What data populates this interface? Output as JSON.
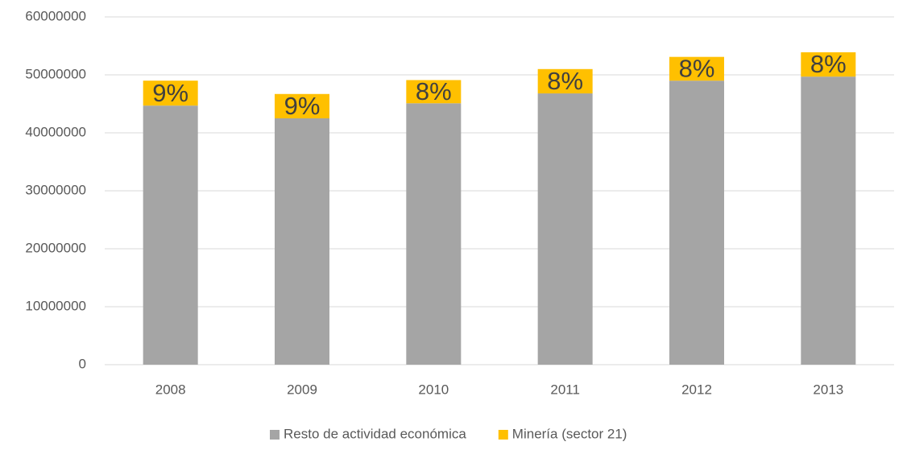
{
  "chart_data": {
    "type": "stacked_bar",
    "categories": [
      "2008",
      "2009",
      "2010",
      "2011",
      "2012",
      "2013"
    ],
    "series": [
      {
        "name": "Resto de actividad económica",
        "color": "#a5a5a5",
        "values": [
          44700000,
          42500000,
          45100000,
          46800000,
          49000000,
          49700000
        ]
      },
      {
        "name": "Minería (sector 21)",
        "color": "#ffc000",
        "values": [
          4300000,
          4200000,
          4000000,
          4200000,
          4100000,
          4200000
        ],
        "percent_labels": [
          "9%",
          "9%",
          "8%",
          "8%",
          "8%",
          "8%"
        ]
      }
    ],
    "ylim": [
      0,
      60000000
    ],
    "yticks": [
      0,
      10000000,
      20000000,
      30000000,
      40000000,
      50000000,
      60000000
    ],
    "grid": true,
    "legend": "bottom"
  }
}
